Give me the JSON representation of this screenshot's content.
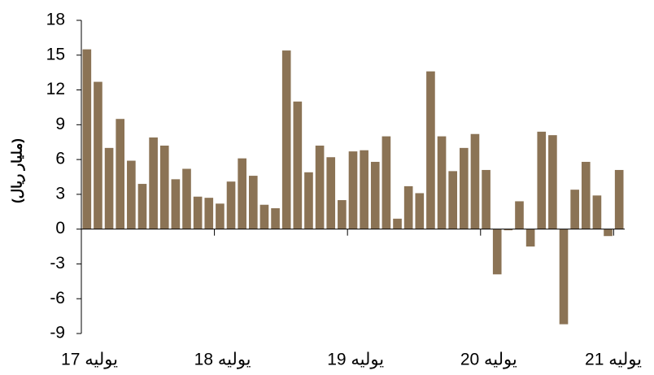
{
  "chart_data": {
    "type": "bar",
    "y_label": "(مليار ريال)",
    "categories": [
      "يوليه 17",
      null,
      null,
      null,
      null,
      null,
      null,
      null,
      null,
      null,
      null,
      null,
      "يوليه 18",
      null,
      null,
      null,
      null,
      null,
      null,
      null,
      null,
      null,
      null,
      null,
      "يوليه 19",
      null,
      null,
      null,
      null,
      null,
      null,
      null,
      null,
      null,
      null,
      null,
      "يوليه 20",
      null,
      null,
      null,
      null,
      null,
      null,
      null,
      null,
      null,
      null,
      null,
      "يوليه 21"
    ],
    "values": [
      15.5,
      12.7,
      7.0,
      9.5,
      5.9,
      3.9,
      7.9,
      7.2,
      4.3,
      5.2,
      2.8,
      2.7,
      2.2,
      4.1,
      6.1,
      4.6,
      2.1,
      1.8,
      15.4,
      11.0,
      4.9,
      7.2,
      6.2,
      2.5,
      6.7,
      6.8,
      5.8,
      8.0,
      0.9,
      3.7,
      3.1,
      13.6,
      8.0,
      5.0,
      7.0,
      8.2,
      5.1,
      -3.9,
      -0.1,
      2.4,
      -1.5,
      8.4,
      8.1,
      -8.2,
      3.4,
      5.8,
      2.9,
      -0.6,
      5.1
    ],
    "color": "#8b7355",
    "ylim": [
      -9,
      18
    ],
    "yticks": [
      -9,
      -6,
      -3,
      0,
      3,
      6,
      9,
      12,
      15,
      18
    ],
    "grid": false
  }
}
